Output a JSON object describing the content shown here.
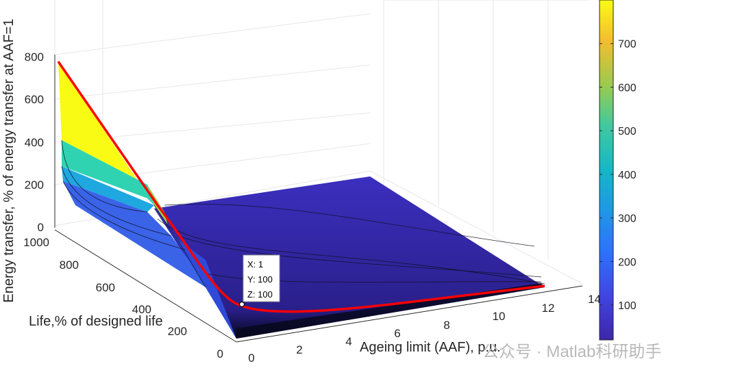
{
  "chart_data": {
    "type": "surface",
    "xlabel": "Ageing limit (AAF), p.u.",
    "ylabel": "Life,% of designed life",
    "zlabel": "Energy transfer, % of energy transfer at AAF=1",
    "x_ticks": [
      "0",
      "2",
      "4",
      "6",
      "8",
      "10",
      "12",
      "14"
    ],
    "y_ticks": [
      "0",
      "200",
      "400",
      "600",
      "800",
      "1000"
    ],
    "z_ticks": [
      "0",
      "200",
      "400",
      "600",
      "800"
    ],
    "xlim": [
      0,
      14
    ],
    "ylim": [
      0,
      1000
    ],
    "zlim": [
      0,
      800
    ],
    "colormap": "parula",
    "colorbar_ticks": [
      "100",
      "200",
      "300",
      "400",
      "500",
      "600",
      "700"
    ],
    "colorbar_range": [
      20,
      800
    ],
    "highlight_curve_color": "#ff0000",
    "highlight_curve": {
      "x": [
        0.125,
        0.25,
        0.5,
        1,
        2,
        4,
        8,
        12.5
      ],
      "y": [
        800,
        400,
        200,
        100,
        50,
        25,
        12.5,
        8
      ],
      "z": [
        800,
        400,
        200,
        100,
        50,
        25,
        12.5,
        8
      ]
    },
    "datatip": {
      "x_label": "X: 1",
      "y_label": "Y: 100",
      "z_label": "Z: 100",
      "x": 1,
      "y": 100,
      "z": 100
    }
  },
  "watermark": "公众号 · Matlab科研助手"
}
